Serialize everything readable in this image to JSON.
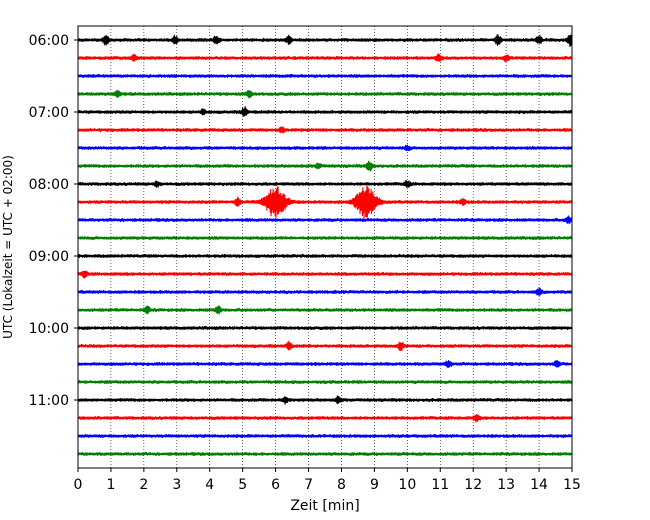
{
  "chart_data": {
    "type": "line",
    "title": "",
    "xlabel": "Zeit  [min]",
    "ylabel": "UTC (Lokalzeit = UTC + 02:00)",
    "xlim": [
      0,
      15
    ],
    "x_ticks": [
      "0",
      "1",
      "2",
      "3",
      "4",
      "5",
      "6",
      "7",
      "8",
      "9",
      "10",
      "11",
      "12",
      "13",
      "14",
      "15"
    ],
    "y_ticks": [
      "06:00",
      "07:00",
      "08:00",
      "09:00",
      "10:00",
      "11:00"
    ],
    "grid": "vertical dotted at each minute",
    "trace_interval_min": 15,
    "start_time": "06:00",
    "colors": [
      "#000000",
      "#ff0000",
      "#0000ff",
      "#008000"
    ],
    "noise_amplitude": 0.13,
    "traces": [
      {
        "start": "06:00",
        "color": "#000000",
        "events": [
          {
            "t": 0.85,
            "a": 0.55
          },
          {
            "t": 2.95,
            "a": 0.45
          },
          {
            "t": 4.2,
            "a": 0.45
          },
          {
            "t": 6.4,
            "a": 0.45
          },
          {
            "t": 12.75,
            "a": 0.55
          },
          {
            "t": 14.0,
            "a": 0.45
          },
          {
            "t": 14.95,
            "a": 0.6
          }
        ]
      },
      {
        "start": "06:15",
        "color": "#ff0000",
        "events": [
          {
            "t": 1.7,
            "a": 0.35
          },
          {
            "t": 10.95,
            "a": 0.4
          },
          {
            "t": 13.0,
            "a": 0.35
          }
        ]
      },
      {
        "start": "06:30",
        "color": "#0000ff",
        "events": []
      },
      {
        "start": "06:45",
        "color": "#008000",
        "events": [
          {
            "t": 1.2,
            "a": 0.35
          },
          {
            "t": 5.2,
            "a": 0.35
          }
        ]
      },
      {
        "start": "07:00",
        "color": "#000000",
        "events": [
          {
            "t": 5.05,
            "a": 0.55
          },
          {
            "t": 3.8,
            "a": 0.25
          }
        ]
      },
      {
        "start": "07:15",
        "color": "#ff0000",
        "events": [
          {
            "t": 6.2,
            "a": 0.25
          }
        ]
      },
      {
        "start": "07:30",
        "color": "#0000ff",
        "events": [
          {
            "t": 10.0,
            "a": 0.25
          }
        ]
      },
      {
        "start": "07:45",
        "color": "#008000",
        "events": [
          {
            "t": 8.85,
            "a": 0.55
          },
          {
            "t": 7.3,
            "a": 0.25
          }
        ]
      },
      {
        "start": "08:00",
        "color": "#000000",
        "events": [
          {
            "t": 10.0,
            "a": 0.35
          },
          {
            "t": 2.4,
            "a": 0.25
          }
        ]
      },
      {
        "start": "08:15",
        "color": "#ff0000",
        "events": [
          {
            "t": 4.85,
            "a": 0.45
          },
          {
            "t": 6.0,
            "a": 1.7,
            "w": 0.3
          },
          {
            "t": 8.75,
            "a": 1.7,
            "w": 0.3
          },
          {
            "t": 11.7,
            "a": 0.35
          }
        ]
      },
      {
        "start": "08:30",
        "color": "#0000ff",
        "events": [
          {
            "t": 14.9,
            "a": 0.35
          }
        ]
      },
      {
        "start": "08:45",
        "color": "#008000",
        "events": []
      },
      {
        "start": "09:00",
        "color": "#000000",
        "events": []
      },
      {
        "start": "09:15",
        "color": "#ff0000",
        "events": [
          {
            "t": 0.2,
            "a": 0.35
          }
        ]
      },
      {
        "start": "09:30",
        "color": "#0000ff",
        "events": [
          {
            "t": 14.0,
            "a": 0.35
          }
        ]
      },
      {
        "start": "09:45",
        "color": "#008000",
        "events": [
          {
            "t": 2.1,
            "a": 0.35
          },
          {
            "t": 4.25,
            "a": 0.45
          }
        ]
      },
      {
        "start": "10:00",
        "color": "#000000",
        "events": []
      },
      {
        "start": "10:15",
        "color": "#ff0000",
        "events": [
          {
            "t": 6.4,
            "a": 0.4
          },
          {
            "t": 9.8,
            "a": 0.45
          }
        ]
      },
      {
        "start": "10:30",
        "color": "#0000ff",
        "events": [
          {
            "t": 11.25,
            "a": 0.35
          },
          {
            "t": 14.55,
            "a": 0.35
          }
        ]
      },
      {
        "start": "10:45",
        "color": "#008000",
        "events": []
      },
      {
        "start": "11:00",
        "color": "#000000",
        "events": [
          {
            "t": 6.3,
            "a": 0.35
          },
          {
            "t": 7.9,
            "a": 0.3
          }
        ]
      },
      {
        "start": "11:15",
        "color": "#ff0000",
        "events": [
          {
            "t": 12.1,
            "a": 0.35
          }
        ]
      },
      {
        "start": "11:30",
        "color": "#0000ff",
        "events": []
      },
      {
        "start": "11:45",
        "color": "#008000",
        "events": []
      }
    ]
  }
}
